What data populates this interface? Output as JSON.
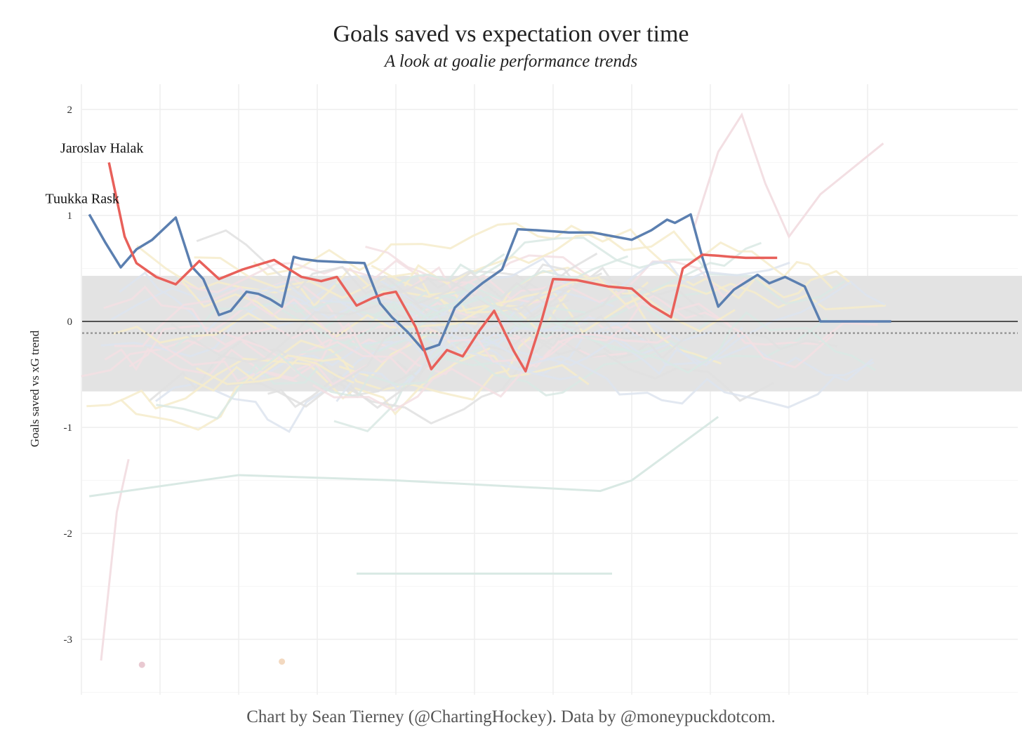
{
  "title": "Goals saved vs expectation over time",
  "subtitle": "A look at goalie performance trends",
  "caption": "Chart by Sean Tierney (@ChartingHockey). Data by @moneypuckdotcom.",
  "colors": {
    "rask": "#5b7fb0",
    "halak": "#e8605a",
    "band": "#e3e3e3",
    "grid": "#eeeeee",
    "zero_line": "#222222",
    "mean_line": "#999999",
    "background_lines": [
      "#f3dfe3",
      "#dde4ee",
      "#f6eccb",
      "#d9e9e4",
      "#e0e0e0"
    ]
  },
  "chart_data": {
    "type": "line",
    "title": "Goals saved vs expectation over time",
    "subtitle": "A look at goalie performance trends",
    "xlabel": "",
    "ylabel": "Goals saved vs xG trend",
    "ylim": [
      -3.5,
      2.2
    ],
    "xlim": [
      0,
      11.5
    ],
    "y_ticks": [
      2,
      1,
      0,
      -1,
      -2,
      -3
    ],
    "x_gridlines": [
      0.5,
      1.5,
      2.5,
      3.5,
      4.5,
      5.5,
      6.5,
      7.5,
      8.5,
      9.5,
      10.5
    ],
    "grid": true,
    "legend": "none",
    "band": {
      "ymin": -0.66,
      "ymax": 0.43
    },
    "reference_lines": [
      {
        "y": 0,
        "style": "solid"
      },
      {
        "y": -0.11,
        "style": "dotted"
      }
    ],
    "series": [
      {
        "name": "Tuukka Rask",
        "highlight": true,
        "x": [
          0.6,
          0.8,
          1.0,
          1.2,
          1.4,
          1.7,
          1.9,
          2.05,
          2.25,
          2.4,
          2.6,
          2.75,
          2.9,
          3.05,
          3.2,
          3.3,
          3.5,
          4.1,
          4.3,
          4.45,
          4.65,
          4.85,
          5.05,
          5.25,
          5.45,
          5.6,
          5.85,
          6.05,
          6.3,
          6.5,
          6.7,
          7.0,
          7.5,
          7.75,
          7.95,
          8.05,
          8.25,
          8.4,
          8.6,
          8.8,
          9.1,
          9.25,
          9.45,
          9.7,
          9.9,
          10.15,
          10.4,
          10.65,
          10.8
        ],
        "y": [
          1.01,
          0.75,
          0.51,
          0.68,
          0.77,
          0.98,
          0.52,
          0.4,
          0.06,
          0.1,
          0.28,
          0.26,
          0.21,
          0.14,
          0.61,
          0.59,
          0.57,
          0.55,
          0.17,
          0.04,
          -0.1,
          -0.27,
          -0.22,
          0.13,
          0.27,
          0.36,
          0.49,
          0.87,
          0.86,
          0.85,
          0.84,
          0.84,
          0.77,
          0.86,
          0.96,
          0.93,
          1.01,
          0.6,
          0.14,
          0.3,
          0.44,
          0.36,
          0.42,
          0.33,
          0.0,
          0.0,
          0.0,
          0.0,
          0.0
        ]
      },
      {
        "name": "Jaroslav Halak",
        "highlight": true,
        "x": [
          0.85,
          1.05,
          1.2,
          1.45,
          1.7,
          2.0,
          2.25,
          2.55,
          2.95,
          3.3,
          3.55,
          3.75,
          4.0,
          4.2,
          4.35,
          4.5,
          4.75,
          4.95,
          5.15,
          5.35,
          5.55,
          5.75,
          6.0,
          6.15,
          6.35,
          6.5,
          6.8,
          7.2,
          7.5,
          7.75,
          8.0,
          8.15,
          8.4,
          8.6,
          8.75,
          8.95,
          9.15,
          9.35
        ],
        "y": [
          1.5,
          0.8,
          0.55,
          0.42,
          0.35,
          0.57,
          0.4,
          0.49,
          0.58,
          0.42,
          0.38,
          0.42,
          0.15,
          0.22,
          0.26,
          0.28,
          -0.05,
          -0.45,
          -0.27,
          -0.33,
          -0.1,
          0.1,
          -0.28,
          -0.47,
          0.0,
          0.4,
          0.39,
          0.33,
          0.31,
          0.15,
          0.04,
          0.5,
          0.63,
          0.62,
          0.61,
          0.6,
          0.6,
          0.6
        ]
      }
    ],
    "annotations": [
      {
        "text": "Jaroslav Halak",
        "x": 0.85,
        "y": 1.5
      },
      {
        "text": "Tuukka Rask",
        "x": 0.6,
        "y": 1.01
      }
    ],
    "background_series_count": 60
  }
}
